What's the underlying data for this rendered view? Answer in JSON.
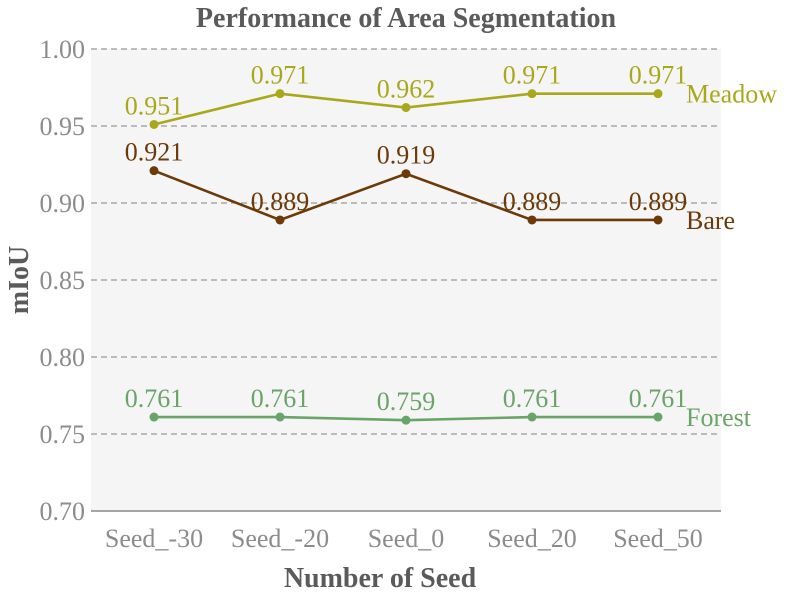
{
  "chart_data": {
    "type": "line",
    "title": "Performance of Area Segmentation",
    "xlabel": "Number of Seed",
    "ylabel": "mIoU",
    "categories": [
      "Seed_-30",
      "Seed_-20",
      "Seed_0",
      "Seed_20",
      "Seed_50"
    ],
    "ylim": [
      0.7,
      1.0
    ],
    "yticks": [
      "0.70",
      "0.75",
      "0.80",
      "0.85",
      "0.90",
      "0.95",
      "1.00"
    ],
    "grid": true,
    "legend": "inline labels at right end of each line",
    "series": [
      {
        "name": "Meadow",
        "color": "#a8a81c",
        "values": [
          0.951,
          0.971,
          0.962,
          0.971,
          0.971
        ],
        "labels": [
          "0.951",
          "0.971",
          "0.962",
          "0.971",
          "0.971"
        ]
      },
      {
        "name": "Bare",
        "color": "#6b3a08",
        "values": [
          0.921,
          0.889,
          0.919,
          0.889,
          0.889
        ],
        "labels": [
          "0.921",
          "0.889",
          "0.919",
          "0.889",
          "0.889"
        ]
      },
      {
        "name": "Forest",
        "color": "#6aa468",
        "values": [
          0.761,
          0.761,
          0.759,
          0.761,
          0.761
        ],
        "labels": [
          "0.761",
          "0.761",
          "0.759",
          "0.761",
          "0.761"
        ]
      }
    ]
  },
  "colors": {
    "plot_background": "#f5f5f5",
    "grid": "#999999",
    "axis_text": "#8c8c8c",
    "title_text": "#5a5a5a"
  }
}
